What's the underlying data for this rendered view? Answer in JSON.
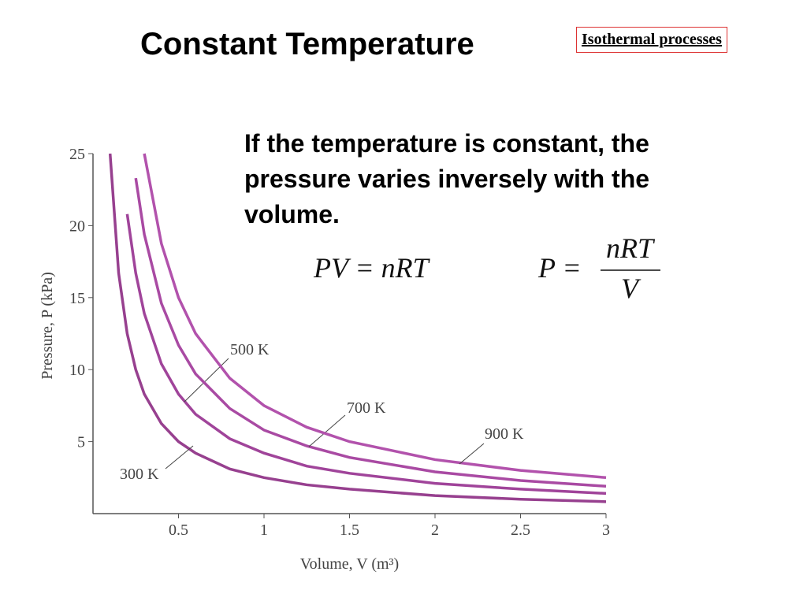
{
  "slide": {
    "title": "Constant Temperature",
    "tag": "Isothermal processes",
    "body": "If the temperature is constant, the pressure varies inversely with the volume.",
    "equation": "PV = nRT",
    "fraction": {
      "left": "P =",
      "numerator": "nRT",
      "denominator": "V"
    }
  },
  "chart_data": {
    "type": "line",
    "x_label": "Volume, V (m³)",
    "y_label": "Pressure, P (kPa)",
    "x": [
      0.1,
      0.15,
      0.2,
      0.25,
      0.3,
      0.4,
      0.5,
      0.6,
      0.8,
      1,
      1.25,
      1.5,
      2,
      2.5,
      3
    ],
    "series": [
      {
        "name": "300 K",
        "color": "#97408f",
        "values": [
          25,
          16.7,
          12.5,
          10,
          8.3,
          6.25,
          5,
          4.2,
          3.1,
          2.5,
          2,
          1.7,
          1.25,
          1,
          0.83
        ]
      },
      {
        "name": "500 K",
        "color": "#a0449a",
        "values": [
          null,
          null,
          20.8,
          16.7,
          13.9,
          10.4,
          8.3,
          6.9,
          5.2,
          4.2,
          3.3,
          2.8,
          2.1,
          1.7,
          1.4
        ]
      },
      {
        "name": "700 K",
        "color": "#a94aa3",
        "values": [
          null,
          null,
          null,
          23.3,
          19.4,
          14.6,
          11.7,
          9.7,
          7.3,
          5.8,
          4.7,
          3.9,
          2.9,
          2.3,
          1.9
        ]
      },
      {
        "name": "900 K",
        "color": "#b252ac",
        "values": [
          null,
          null,
          null,
          null,
          25,
          18.75,
          15,
          12.5,
          9.4,
          7.5,
          6,
          5,
          3.75,
          3,
          2.5
        ]
      }
    ],
    "xlim": [
      0,
      3
    ],
    "ylim": [
      0,
      25
    ],
    "xticks": [
      0.5,
      1,
      1.5,
      2,
      2.5,
      3
    ],
    "yticks": [
      5,
      10,
      15,
      20,
      25
    ]
  }
}
